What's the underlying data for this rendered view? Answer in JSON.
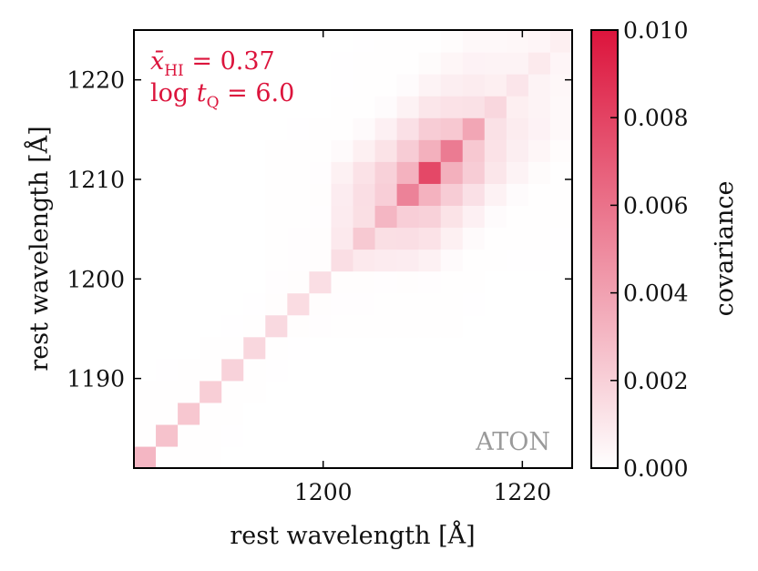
{
  "chart_data": {
    "type": "heatmap",
    "xlabel": "rest wavelength [Å]",
    "ylabel": "rest wavelength [Å]",
    "x_range": [
      1181.0,
      1225.0
    ],
    "y_range": [
      1181.0,
      1225.0
    ],
    "x_ticks": [
      {
        "value": 1200,
        "label": "1200"
      },
      {
        "value": 1220,
        "label": "1220"
      }
    ],
    "y_ticks": [
      {
        "value": 1190,
        "label": "1190"
      },
      {
        "value": 1200,
        "label": "1200"
      },
      {
        "value": 1210,
        "label": "1210"
      },
      {
        "value": 1220,
        "label": "1220"
      }
    ],
    "bins": {
      "start": 1181.0,
      "width": 2.2,
      "count": 20
    },
    "diagonal": [
      0.0031,
      0.0026,
      0.0024,
      0.0021,
      0.0019,
      0.0017,
      0.0016,
      0.0015,
      0.0014,
      0.0014,
      0.0023,
      0.0031,
      0.0053,
      0.0078,
      0.0056,
      0.0038,
      0.0017,
      0.0011,
      0.0009,
      0.0007
    ],
    "colorbar": {
      "label": "covariance",
      "min": 0.0,
      "max": 0.01,
      "min_color": "#ffffff",
      "max_color": "#dc143c",
      "ticks": [
        {
          "value": 0.0,
          "label": "0.000"
        },
        {
          "value": 0.002,
          "label": "0.002"
        },
        {
          "value": 0.004,
          "label": "0.004"
        },
        {
          "value": 0.006,
          "label": "0.006"
        },
        {
          "value": 0.008,
          "label": "0.008"
        },
        {
          "value": 0.01,
          "label": "0.010"
        }
      ]
    },
    "annotations": {
      "line1_lhs": "x̄",
      "line1_sub": "HI",
      "line1_rhs": " = 0.37",
      "line2_lhs": "log ",
      "line2_var": "t",
      "line2_sub": "Q",
      "line2_rhs": " = 6.0",
      "color": "#dc143c",
      "label": "ATON"
    }
  }
}
